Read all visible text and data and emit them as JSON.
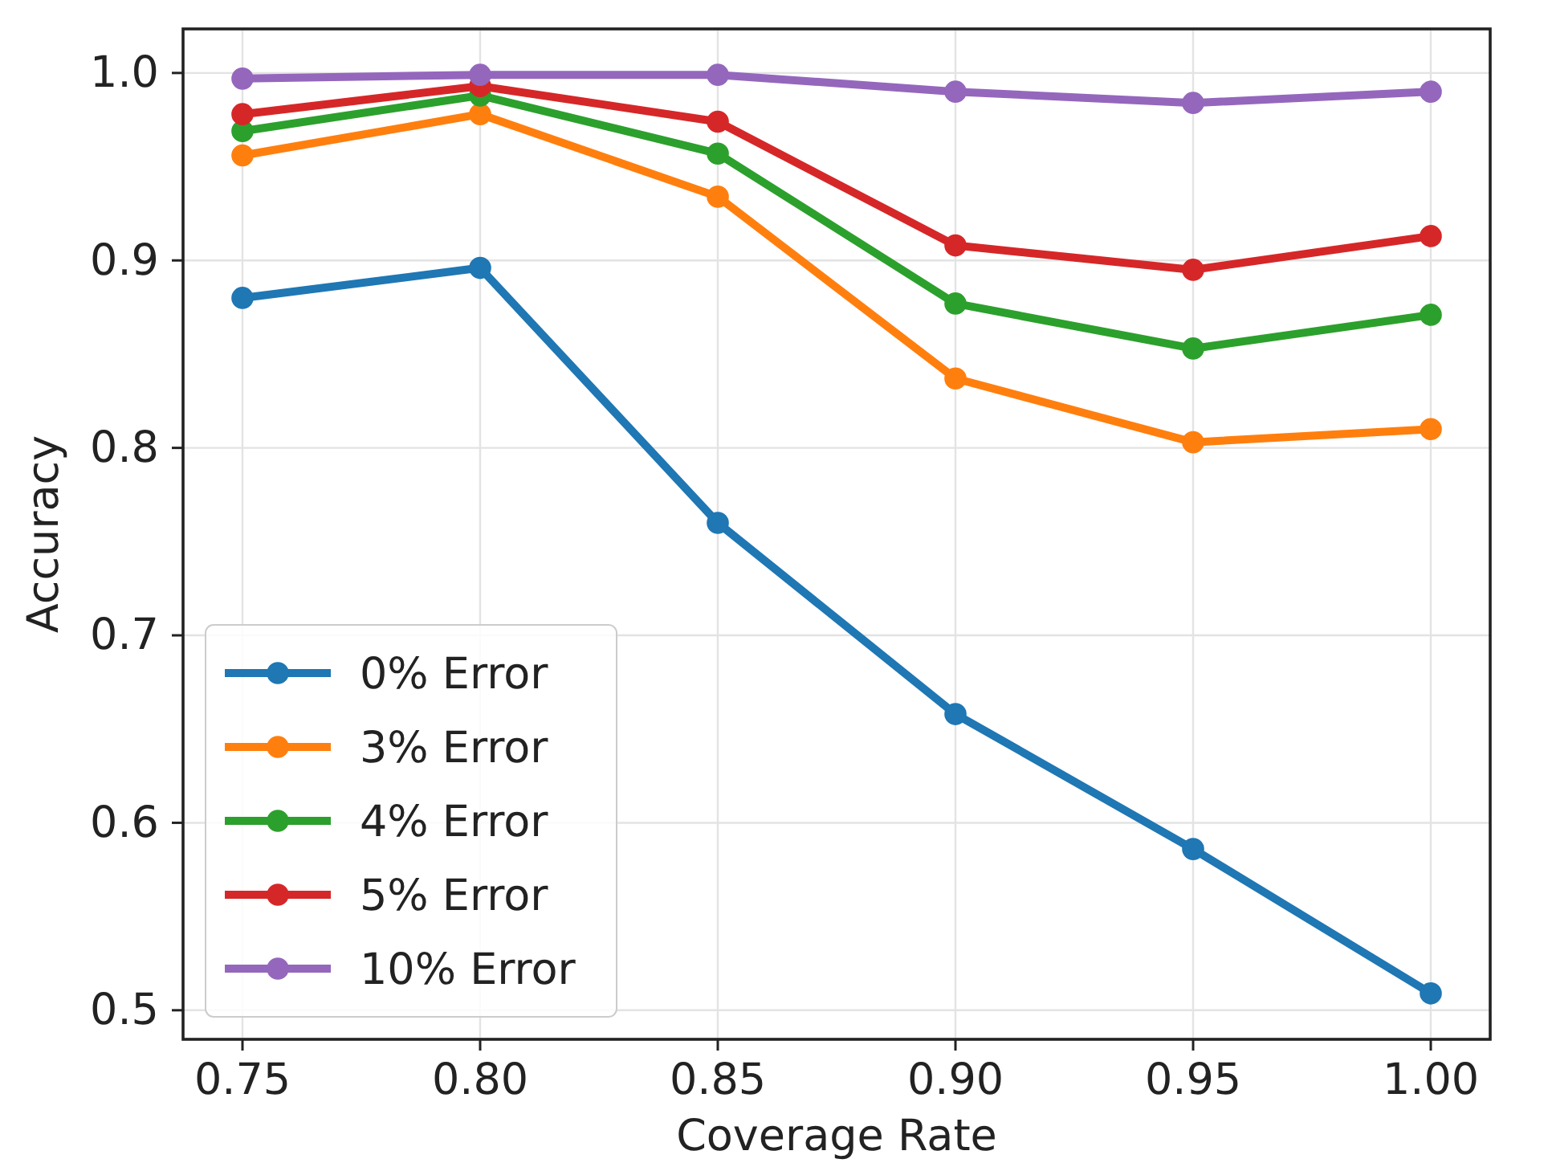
{
  "chart_data": {
    "type": "line",
    "xlabel": "Coverage Rate",
    "ylabel": "Accuracy",
    "x": [
      0.75,
      0.8,
      0.85,
      0.9,
      0.95,
      1.0
    ],
    "xlim": [
      0.7375,
      1.0125
    ],
    "xticks": [
      {
        "value": 0.75,
        "label": "0.75"
      },
      {
        "value": 0.8,
        "label": "0.80"
      },
      {
        "value": 0.85,
        "label": "0.85"
      },
      {
        "value": 0.9,
        "label": "0.90"
      },
      {
        "value": 0.95,
        "label": "0.95"
      },
      {
        "value": 1.0,
        "label": "1.00"
      }
    ],
    "ylim": [
      0.4845,
      1.0235
    ],
    "yticks": [
      0.5,
      0.6,
      0.7,
      0.8,
      0.9,
      {
        "value": 1.0,
        "label": "1.0"
      }
    ],
    "grid": true,
    "legend": "bottom left",
    "marker": "circle",
    "line_style": "solid",
    "series": [
      {
        "name": "0% Error",
        "color": "#1f77b4",
        "values": [
          0.88,
          0.896,
          0.76,
          0.658,
          0.586,
          0.509
        ]
      },
      {
        "name": "3% Error",
        "color": "#ff7f0e",
        "values": [
          0.956,
          0.978,
          0.934,
          0.837,
          0.803,
          0.81
        ]
      },
      {
        "name": "4% Error",
        "color": "#2ca02c",
        "values": [
          0.969,
          0.988,
          0.957,
          0.877,
          0.853,
          0.871
        ]
      },
      {
        "name": "5% Error",
        "color": "#d62728",
        "values": [
          0.978,
          0.993,
          0.974,
          0.908,
          0.895,
          0.913
        ]
      },
      {
        "name": "10% Error",
        "color": "#9467bd",
        "values": [
          0.997,
          0.999,
          0.999,
          0.99,
          0.984,
          0.99
        ]
      }
    ]
  }
}
